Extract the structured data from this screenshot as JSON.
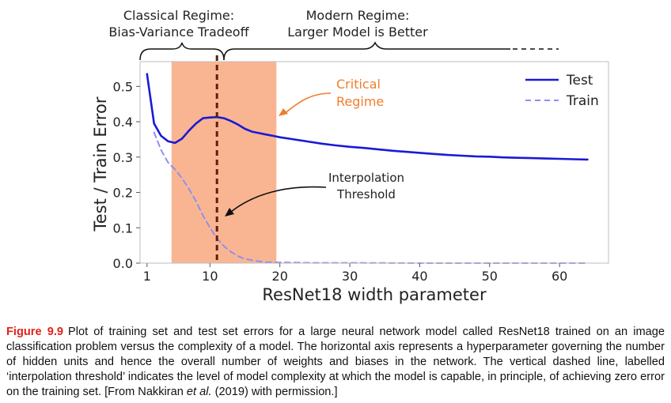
{
  "chart_data": {
    "type": "line",
    "xlabel": "ResNet18 width parameter",
    "ylabel": "Test / Train Error",
    "xlim": [
      0,
      67
    ],
    "ylim": [
      0,
      0.57
    ],
    "xticks": [
      1,
      10,
      20,
      30,
      40,
      50,
      60
    ],
    "yticks": [
      0.0,
      0.1,
      0.2,
      0.3,
      0.4,
      0.5
    ],
    "legend": {
      "position": "top-right",
      "entries": [
        "Test",
        "Train"
      ]
    },
    "series": [
      {
        "name": "Test",
        "color": "#1a1ad6",
        "style": "solid",
        "x": [
          1,
          2,
          3,
          4,
          5,
          6,
          7,
          8,
          9,
          10,
          11,
          12,
          13,
          14,
          15,
          16,
          17,
          18,
          19,
          20,
          22,
          24,
          26,
          28,
          30,
          32,
          34,
          36,
          38,
          40,
          42,
          44,
          46,
          48,
          50,
          52,
          54,
          56,
          58,
          60,
          62,
          64
        ],
        "y": [
          0.535,
          0.395,
          0.36,
          0.345,
          0.34,
          0.352,
          0.375,
          0.395,
          0.41,
          0.412,
          0.413,
          0.41,
          0.402,
          0.392,
          0.38,
          0.372,
          0.368,
          0.364,
          0.36,
          0.356,
          0.35,
          0.344,
          0.338,
          0.333,
          0.329,
          0.326,
          0.322,
          0.318,
          0.315,
          0.312,
          0.309,
          0.306,
          0.304,
          0.302,
          0.301,
          0.299,
          0.298,
          0.297,
          0.296,
          0.295,
          0.294,
          0.293
        ]
      },
      {
        "name": "Train",
        "color": "#8f8ff0",
        "style": "dashed",
        "x": [
          2,
          3,
          4,
          5,
          6,
          7,
          8,
          9,
          10,
          11,
          12,
          13,
          14,
          15,
          16,
          17,
          18,
          20,
          25,
          30,
          40,
          50,
          60,
          64
        ],
        "y": [
          0.37,
          0.32,
          0.285,
          0.265,
          0.24,
          0.21,
          0.175,
          0.135,
          0.1,
          0.07,
          0.048,
          0.032,
          0.02,
          0.012,
          0.008,
          0.005,
          0.003,
          0.002,
          0.001,
          0.001,
          0.0,
          0.0,
          0.0,
          0.0
        ]
      }
    ],
    "regions": [
      {
        "label": "Critical Regime",
        "x_start": 4.5,
        "x_end": 19.5,
        "color": "#f9b592"
      }
    ],
    "vlines": [
      {
        "label": "Interpolation Threshold",
        "x": 11,
        "color": "#5c1f0d",
        "style": "dashed"
      }
    ],
    "annotations": {
      "classical": [
        "Classical Regime:",
        "Bias-Variance Tradeoff"
      ],
      "modern": [
        "Modern Regime:",
        "Larger Model is Better"
      ],
      "critical": [
        "Critical",
        "Regime"
      ],
      "interpolation": [
        "Interpolation",
        "Threshold"
      ]
    }
  },
  "caption": {
    "label": "Figure 9.9",
    "text": "Plot of training set and test set errors for a large neural network model called ResNet18 trained on an image classification problem versus the complexity of a model. The horizontal axis represents a hyperparameter governing the number of hidden units and hence the overall number of weights and biases in the network. The vertical dashed line, labelled ‘interpolation threshold’ indicates the level of model complexity at which the model is capable, in principle, of achieving zero error on the training set. [From Nakkiran ",
    "citation_italic": "et al.",
    "citation_end": " (2019) with permission.]"
  }
}
